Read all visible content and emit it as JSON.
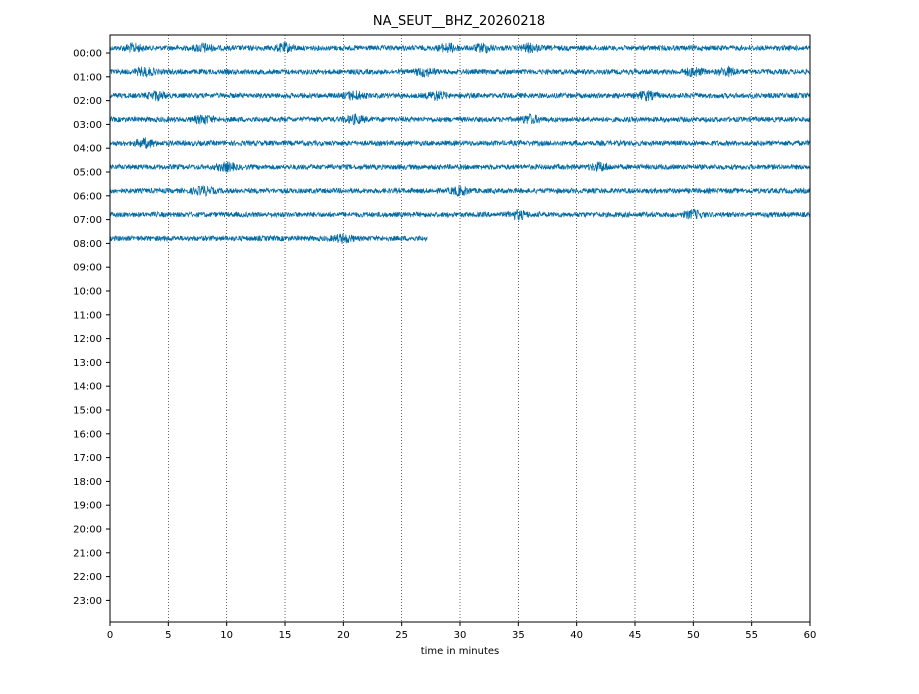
{
  "chart_data": {
    "type": "line",
    "title": "NA_SEUT__BHZ_20260218",
    "xlabel": "time in minutes",
    "ylabel": "",
    "xlim": [
      0,
      60
    ],
    "x_ticks": [
      "0",
      "5",
      "10",
      "15",
      "20",
      "25",
      "30",
      "35",
      "40",
      "45",
      "50",
      "55",
      "60"
    ],
    "y_tick_labels": [
      "00:00",
      "01:00",
      "02:00",
      "03:00",
      "04:00",
      "05:00",
      "06:00",
      "07:00",
      "08:00",
      "09:00",
      "10:00",
      "11:00",
      "12:00",
      "13:00",
      "14:00",
      "15:00",
      "16:00",
      "17:00",
      "18:00",
      "19:00",
      "20:00",
      "21:00",
      "22:00",
      "23:00"
    ],
    "grid": "vertical dotted lines at x ticks",
    "trace_color": "#006ba4",
    "series": [
      {
        "hour": "00:00",
        "x_start": 0,
        "x_end": 60,
        "bursts_min": [
          2,
          8,
          15,
          29,
          32,
          36
        ]
      },
      {
        "hour": "01:00",
        "x_start": 0,
        "x_end": 60,
        "bursts_min": [
          3,
          27,
          50,
          53
        ]
      },
      {
        "hour": "02:00",
        "x_start": 0,
        "x_end": 60,
        "bursts_min": [
          4,
          21,
          28,
          46
        ]
      },
      {
        "hour": "03:00",
        "x_start": 0,
        "x_end": 60,
        "bursts_min": [
          8,
          21,
          36
        ]
      },
      {
        "hour": "04:00",
        "x_start": 0,
        "x_end": 60,
        "bursts_min": [
          3
        ]
      },
      {
        "hour": "05:00",
        "x_start": 0,
        "x_end": 60,
        "bursts_min": [
          10,
          42
        ]
      },
      {
        "hour": "06:00",
        "x_start": 0,
        "x_end": 60,
        "bursts_min": [
          8,
          30
        ]
      },
      {
        "hour": "07:00",
        "x_start": 0,
        "x_end": 60,
        "bursts_min": [
          35,
          50
        ]
      },
      {
        "hour": "08:00",
        "x_start": 0,
        "x_end": 27.2,
        "bursts_min": [
          20
        ]
      }
    ]
  }
}
